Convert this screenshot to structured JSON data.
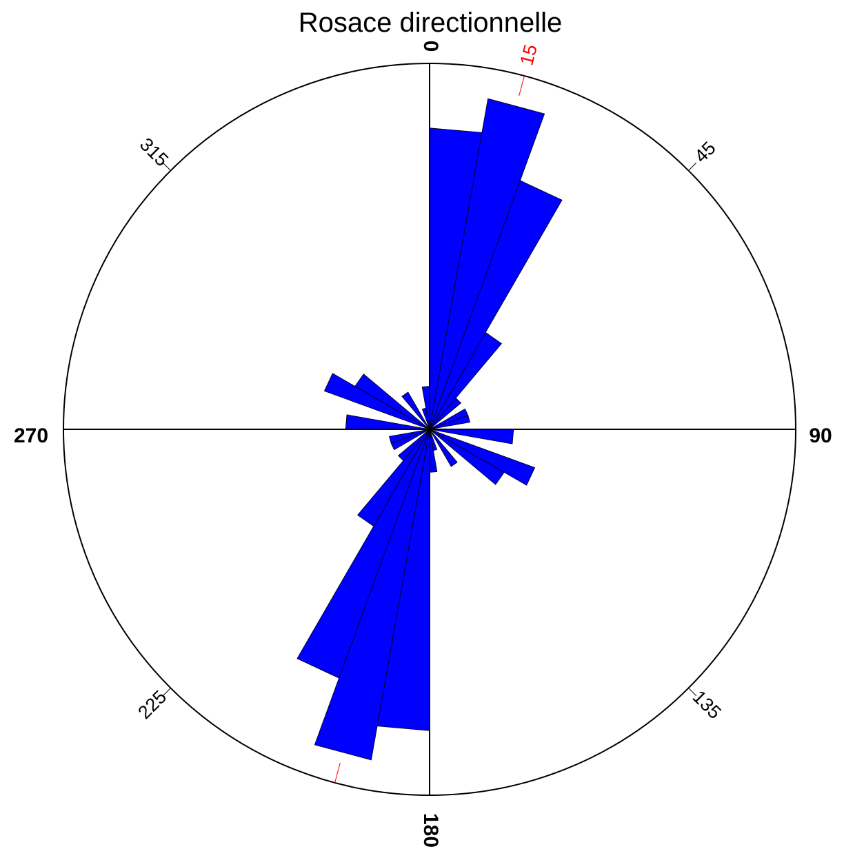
{
  "chart_data": {
    "type": "rose",
    "title": "Rosace directionnelle",
    "angle_unit": "degrees",
    "zero_direction": "north",
    "rotation": "clockwise",
    "bin_width": 10,
    "r_max": 17,
    "ring_label": "15",
    "ring_label_angle": 15,
    "main_ticks": [
      "0",
      "90",
      "180",
      "270"
    ],
    "main_tick_angles": [
      0,
      90,
      180,
      270
    ],
    "minor_ticks": [
      "45",
      "135",
      "225",
      "315"
    ],
    "minor_tick_angles": [
      45,
      135,
      225,
      315
    ],
    "bins": [
      {
        "from": 0,
        "to": 10,
        "value": 14
      },
      {
        "from": 10,
        "to": 20,
        "value": 15.6
      },
      {
        "from": 20,
        "to": 30,
        "value": 12.3
      },
      {
        "from": 30,
        "to": 40,
        "value": 5.2
      },
      {
        "from": 40,
        "to": 50,
        "value": 1.9
      },
      {
        "from": 50,
        "to": 60,
        "value": 0
      },
      {
        "from": 60,
        "to": 70,
        "value": 1.9
      },
      {
        "from": 70,
        "to": 80,
        "value": 1.9
      },
      {
        "from": 80,
        "to": 90,
        "value": 0
      },
      {
        "from": 90,
        "to": 100,
        "value": 3.9
      },
      {
        "from": 100,
        "to": 110,
        "value": 0
      },
      {
        "from": 110,
        "to": 120,
        "value": 5.2
      },
      {
        "from": 120,
        "to": 130,
        "value": 4.0
      },
      {
        "from": 130,
        "to": 140,
        "value": 0
      },
      {
        "from": 140,
        "to": 150,
        "value": 2.0
      },
      {
        "from": 150,
        "to": 160,
        "value": 0
      },
      {
        "from": 160,
        "to": 170,
        "value": 1.0
      },
      {
        "from": 170,
        "to": 180,
        "value": 2.0
      },
      {
        "from": 180,
        "to": 190,
        "value": 14
      },
      {
        "from": 190,
        "to": 200,
        "value": 15.6
      },
      {
        "from": 200,
        "to": 210,
        "value": 12.3
      },
      {
        "from": 210,
        "to": 220,
        "value": 5.2
      },
      {
        "from": 220,
        "to": 230,
        "value": 1.9
      },
      {
        "from": 230,
        "to": 240,
        "value": 0
      },
      {
        "from": 240,
        "to": 250,
        "value": 1.9
      },
      {
        "from": 250,
        "to": 260,
        "value": 1.9
      },
      {
        "from": 260,
        "to": 270,
        "value": 0
      },
      {
        "from": 270,
        "to": 280,
        "value": 3.9
      },
      {
        "from": 280,
        "to": 290,
        "value": 0
      },
      {
        "from": 290,
        "to": 300,
        "value": 5.2
      },
      {
        "from": 300,
        "to": 310,
        "value": 4.0
      },
      {
        "from": 310,
        "to": 320,
        "value": 0
      },
      {
        "from": 320,
        "to": 330,
        "value": 2.0
      },
      {
        "from": 330,
        "to": 340,
        "value": 0
      },
      {
        "from": 340,
        "to": 350,
        "value": 1.0
      },
      {
        "from": 350,
        "to": 360,
        "value": 2.0
      }
    ],
    "colors": {
      "bar_fill": "#0000ff",
      "bar_stroke": "#000000",
      "axis": "#000000",
      "ring_label": "#ff0000"
    }
  }
}
